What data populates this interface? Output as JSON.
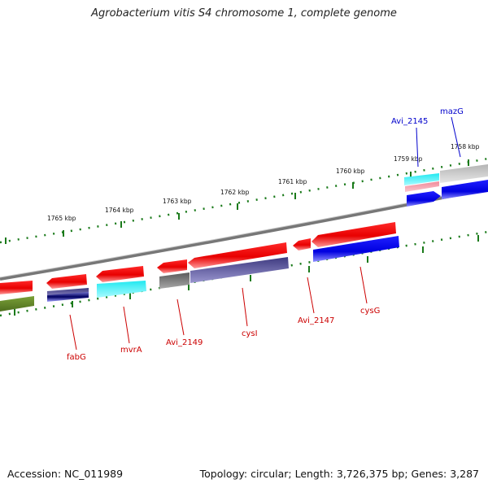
{
  "title": "Agrobacterium vitis S4 chromosome 1, complete genome",
  "accession_text": "Accession: NC_011989",
  "topology_text": "Topology: circular; Length: 3,726,375 bp; Genes: 3,287",
  "kbp_labels": [
    "1758 kbp",
    "1759 kbp",
    "1760 kbp",
    "1761 kbp",
    "1762 kbp",
    "1763 kbp",
    "1764 kbp",
    "1765 kbp"
  ],
  "gene_labels_forward": [
    "mazG",
    "Avi_2145"
  ],
  "gene_labels_reverse": [
    "fabG",
    "mvrA",
    "Avi_2149",
    "cysI",
    "Avi_2147",
    "cysG"
  ],
  "colors": {
    "forward_label": "#0000cc",
    "reverse_label": "#cc0000",
    "tick": "#1a7a1a"
  }
}
